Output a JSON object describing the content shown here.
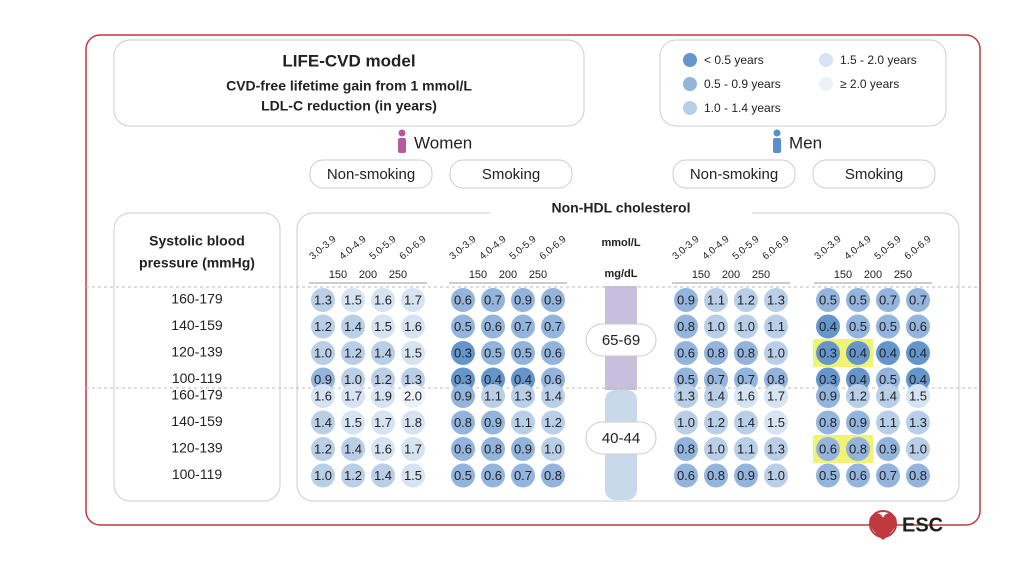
{
  "title": "LIFE-CVD model",
  "subtitle": [
    "CVD-free lifetime gain from 1 mmol/L",
    "LDL-C reduction (in years)"
  ],
  "legend": [
    {
      "label": "< 0.5 years",
      "color": "#6496cc"
    },
    {
      "label": "0.5 - 0.9 years",
      "color": "#93b4dc"
    },
    {
      "label": "1.0 - 1.4 years",
      "color": "#b9cfe8"
    },
    {
      "label": "1.5 - 2.0 years",
      "color": "#d6e3f2"
    },
    {
      "label": "≥ 2.0 years",
      "color": "#edf2f9"
    }
  ],
  "sexes": [
    "Women",
    "Men"
  ],
  "smoking": [
    "Non-smoking",
    "Smoking"
  ],
  "axis_title": "Non-HDL cholesterol",
  "units": [
    "mmol/L",
    "mg/dL"
  ],
  "cholesterol_mmol": [
    "3.0-3.9",
    "4.0-4.9",
    "5.0-5.9",
    "6.0-6.9"
  ],
  "cholesterol_mgdl": [
    "150",
    "200",
    "250"
  ],
  "row_header": [
    "Systolic blood",
    "pressure (mmHg)"
  ],
  "logo": "ESC",
  "age_groups": [
    {
      "label": "65-69",
      "rows": [
        "160-179",
        "140-159",
        "120-139",
        "100-119"
      ],
      "panels": [
        [
          [
            "1.3",
            "1.5",
            "1.6",
            "1.7"
          ],
          [
            "1.2",
            "1.4",
            "1.5",
            "1.6"
          ],
          [
            "1.0",
            "1.2",
            "1.4",
            "1.5"
          ],
          [
            "0.9",
            "1.0",
            "1.2",
            "1.3"
          ]
        ],
        [
          [
            "0.6",
            "0.7",
            "0.9",
            "0.9"
          ],
          [
            "0.5",
            "0.6",
            "0.7",
            "0.7"
          ],
          [
            "0.3",
            "0.5",
            "0.5",
            "0.6"
          ],
          [
            "0.3",
            "0.4",
            "0.4",
            "0.6"
          ]
        ],
        [
          [
            "0.9",
            "1.1",
            "1.2",
            "1.3"
          ],
          [
            "0.8",
            "1.0",
            "1.0",
            "1.1"
          ],
          [
            "0.6",
            "0.8",
            "0.8",
            "1.0"
          ],
          [
            "0.5",
            "0.7",
            "0.7",
            "0.8"
          ]
        ],
        [
          [
            "0.5",
            "0.5",
            "0.7",
            "0.7"
          ],
          [
            "0.4",
            "0.5",
            "0.5",
            "0.6"
          ],
          [
            "0.3",
            "0.4",
            "0.4",
            "0.4"
          ],
          [
            "0.3",
            "0.4",
            "0.5",
            "0.4"
          ]
        ]
      ]
    },
    {
      "label": "40-44",
      "rows": [
        "160-179",
        "140-159",
        "120-139",
        "100-119"
      ],
      "panels": [
        [
          [
            "1.6",
            "1.7",
            "1.9",
            "2.0"
          ],
          [
            "1.4",
            "1.5",
            "1.7",
            "1.8"
          ],
          [
            "1.2",
            "1.4",
            "1.6",
            "1.7"
          ],
          [
            "1.0",
            "1.2",
            "1.4",
            "1.5"
          ]
        ],
        [
          [
            "0.9",
            "1.1",
            "1.3",
            "1.4"
          ],
          [
            "0.8",
            "0.9",
            "1.1",
            "1.2"
          ],
          [
            "0.6",
            "0.8",
            "0.9",
            "1.0"
          ],
          [
            "0.5",
            "0.6",
            "0.7",
            "0.8"
          ]
        ],
        [
          [
            "1.3",
            "1.4",
            "1.6",
            "1.7"
          ],
          [
            "1.0",
            "1.2",
            "1.4",
            "1.5"
          ],
          [
            "0.8",
            "1.0",
            "1.1",
            "1.3"
          ],
          [
            "0.6",
            "0.8",
            "0.9",
            "1.0"
          ]
        ],
        [
          [
            "0.9",
            "1.2",
            "1.4",
            "1.5"
          ],
          [
            "0.8",
            "0.9",
            "1.1",
            "1.3"
          ],
          [
            "0.6",
            "0.8",
            "0.9",
            "1.0"
          ],
          [
            "0.5",
            "0.6",
            "0.7",
            "0.8"
          ]
        ]
      ]
    }
  ]
}
